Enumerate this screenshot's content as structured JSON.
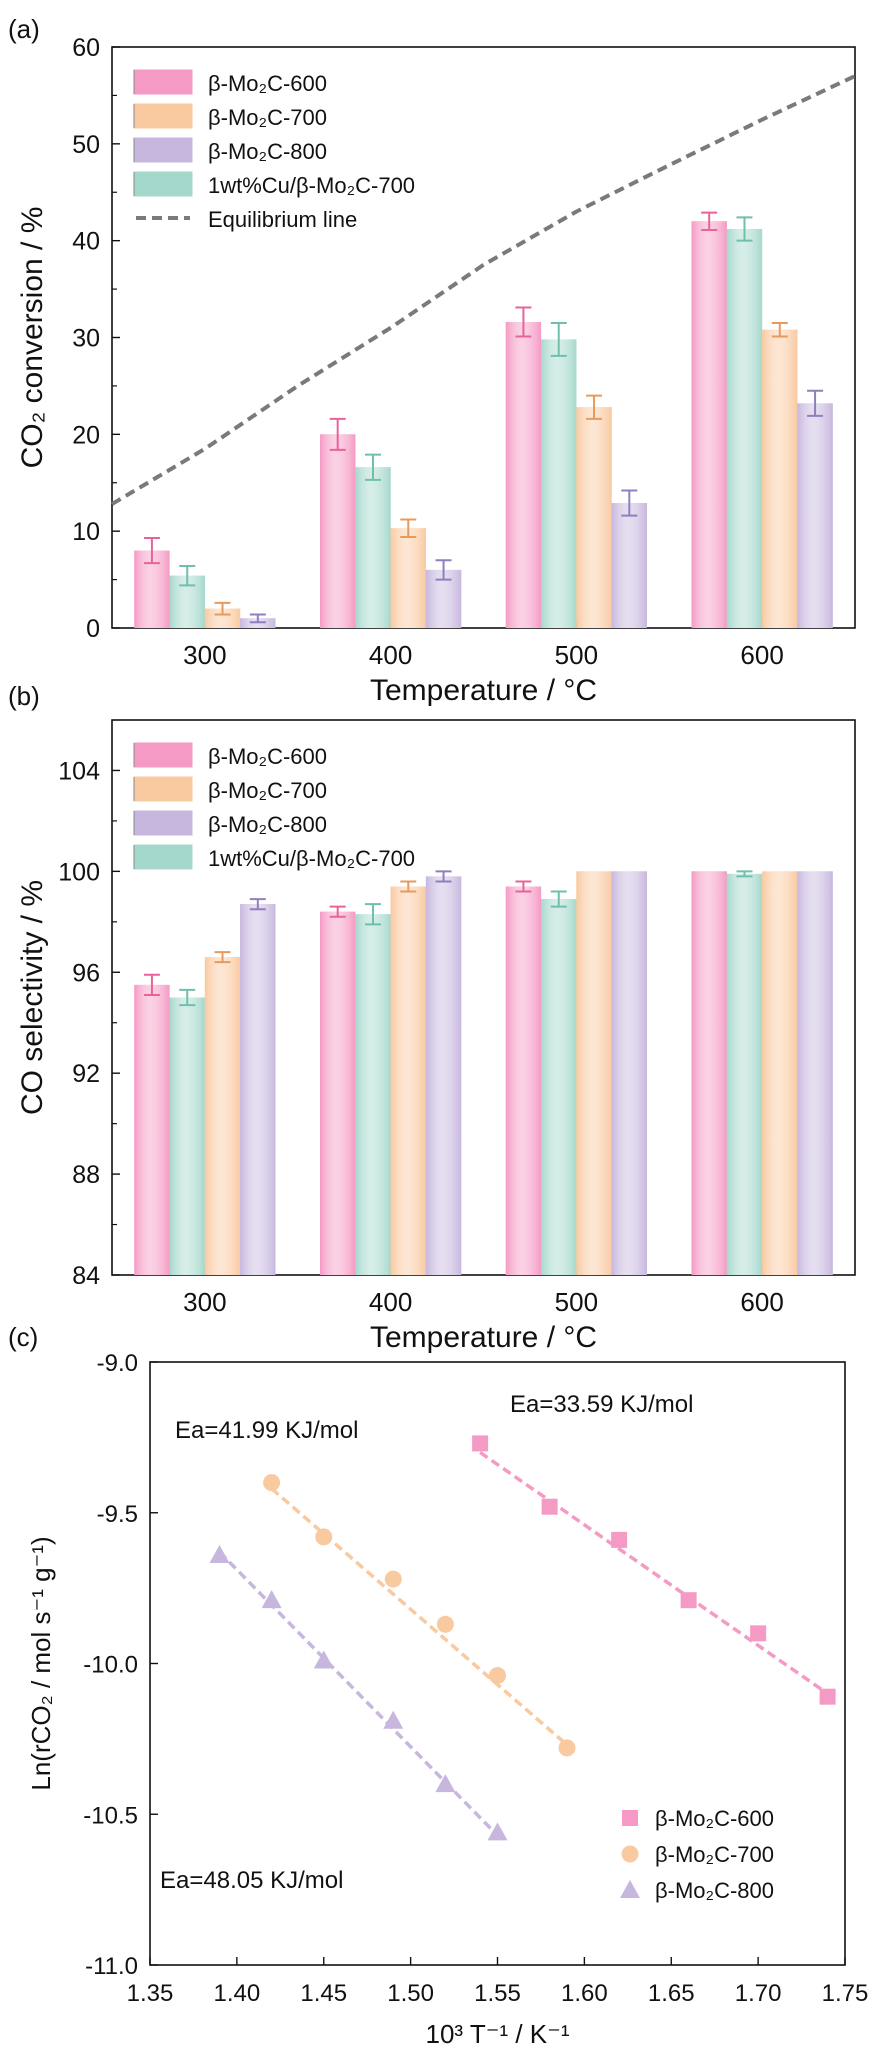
{
  "colors": {
    "s600": "#f59ac4",
    "s700": "#f9c9a0",
    "s800": "#c7b7de",
    "cu700": "#a5d8cc",
    "equilibrium": "#7a7a7a",
    "err600": "#e8639b",
    "err700": "#e89a5c",
    "err800": "#8f7fbf",
    "errcu": "#6fbfae"
  },
  "chart_data": [
    {
      "type": "bar",
      "panel_label": "(a)",
      "xlabel": "Temperature / °C",
      "ylabel": "CO₂ conversion / %",
      "ylim": [
        0,
        60
      ],
      "yticks": [
        "0",
        "10",
        "20",
        "30",
        "40",
        "50",
        "60"
      ],
      "categories": [
        "300",
        "400",
        "500",
        "600"
      ],
      "series": [
        {
          "name": "β-Mo₂C-600",
          "key": "s600",
          "values": [
            8.0,
            20.0,
            31.6,
            42.0
          ],
          "errors": [
            1.3,
            1.6,
            1.5,
            0.9
          ]
        },
        {
          "name": "1wt%Cu/β-Mo₂C-700",
          "key": "cu700",
          "values": [
            5.4,
            16.6,
            29.8,
            41.2
          ],
          "errors": [
            1.0,
            1.3,
            1.7,
            1.2
          ]
        },
        {
          "name": "β-Mo₂C-700",
          "key": "s700",
          "values": [
            2.0,
            10.3,
            22.8,
            30.8
          ],
          "errors": [
            0.6,
            0.9,
            1.2,
            0.7
          ]
        },
        {
          "name": "β-Mo₂C-800",
          "key": "s800",
          "values": [
            1.0,
            6.0,
            12.9,
            23.2
          ],
          "errors": [
            0.4,
            1.0,
            1.3,
            1.3
          ]
        }
      ],
      "legend": [
        {
          "label": "β-Mo₂C-600",
          "key": "s600",
          "kind": "box"
        },
        {
          "label": "β-Mo₂C-700",
          "key": "s700",
          "kind": "box"
        },
        {
          "label": "β-Mo₂C-800",
          "key": "s800",
          "kind": "box"
        },
        {
          "label": "1wt%Cu/β-Mo₂C-700",
          "key": "cu700",
          "kind": "box"
        },
        {
          "label": "Equilibrium line",
          "key": "equilibrium",
          "kind": "dash"
        }
      ],
      "equilibrium_line": {
        "name": "Equilibrium line",
        "x": [
          0,
          0.5,
          1,
          1.5,
          2,
          2.5,
          3,
          3.5,
          4
        ],
        "y": [
          12.8,
          18.5,
          25.0,
          31.0,
          37.5,
          43.0,
          47.8,
          52.5,
          57.0
        ]
      },
      "legend_position": "top-left"
    },
    {
      "type": "bar",
      "panel_label": "(b)",
      "xlabel": "Temperature / °C",
      "ylabel": "CO selectivity / %",
      "ylim": [
        84,
        106
      ],
      "yticks": [
        "84",
        "88",
        "92",
        "96",
        "100",
        "104"
      ],
      "categories": [
        "300",
        "400",
        "500",
        "600"
      ],
      "series": [
        {
          "name": "β-Mo₂C-600",
          "key": "s600",
          "values": [
            95.5,
            98.4,
            99.4,
            100.0
          ],
          "errors": [
            0.4,
            0.2,
            0.2,
            0
          ]
        },
        {
          "name": "1wt%Cu/β-Mo₂C-700",
          "key": "cu700",
          "values": [
            95.0,
            98.3,
            98.9,
            99.9
          ],
          "errors": [
            0.3,
            0.4,
            0.3,
            0.1
          ]
        },
        {
          "name": "β-Mo₂C-700",
          "key": "s700",
          "values": [
            96.6,
            99.4,
            100.0,
            100.0
          ],
          "errors": [
            0.2,
            0.2,
            0,
            0
          ]
        },
        {
          "name": "β-Mo₂C-800",
          "key": "s800",
          "values": [
            98.7,
            99.8,
            100.0,
            100.0
          ],
          "errors": [
            0.2,
            0.2,
            0,
            0
          ]
        }
      ],
      "legend": [
        {
          "label": "β-Mo₂C-600",
          "key": "s600",
          "kind": "box"
        },
        {
          "label": "β-Mo₂C-700",
          "key": "s700",
          "kind": "box"
        },
        {
          "label": "β-Mo₂C-800",
          "key": "s800",
          "kind": "box"
        },
        {
          "label": "1wt%Cu/β-Mo₂C-700",
          "key": "cu700",
          "kind": "box"
        }
      ],
      "legend_position": "top-left"
    },
    {
      "type": "scatter",
      "panel_label": "(c)",
      "xlabel": "10³ T⁻¹ / K⁻¹",
      "ylabel": "Ln(rCO₂ / mol s⁻¹ g⁻¹)",
      "xlim": [
        1.35,
        1.75
      ],
      "ylim": [
        -11.0,
        -9.0
      ],
      "xticks": [
        "1.35",
        "1.40",
        "1.45",
        "1.50",
        "1.55",
        "1.60",
        "1.65",
        "1.70",
        "1.75"
      ],
      "yticks": [
        "-11.0",
        "-10.5",
        "-10.0",
        "-9.5",
        "-9.0"
      ],
      "series": [
        {
          "name": "β-Mo₂C-600",
          "key": "s600",
          "marker": "square",
          "x": [
            1.54,
            1.58,
            1.62,
            1.66,
            1.7,
            1.74
          ],
          "y": [
            -9.27,
            -9.48,
            -9.59,
            -9.79,
            -9.9,
            -10.11
          ],
          "fit": {
            "x": [
              1.54,
              1.74
            ],
            "y": [
              -9.3,
              -10.1
            ]
          }
        },
        {
          "name": "β-Mo₂C-700",
          "key": "s700",
          "marker": "circle",
          "x": [
            1.42,
            1.45,
            1.49,
            1.52,
            1.55,
            1.59
          ],
          "y": [
            -9.4,
            -9.58,
            -9.72,
            -9.87,
            -10.04,
            -10.28
          ],
          "fit": {
            "x": [
              1.42,
              1.59
            ],
            "y": [
              -9.42,
              -10.27
            ]
          }
        },
        {
          "name": "β-Mo₂C-800",
          "key": "s800",
          "marker": "triangle",
          "x": [
            1.39,
            1.42,
            1.45,
            1.49,
            1.52,
            1.55
          ],
          "y": [
            -9.64,
            -9.79,
            -9.99,
            -10.19,
            -10.4,
            -10.56
          ],
          "fit": {
            "x": [
              1.39,
              1.55
            ],
            "y": [
              -9.63,
              -10.57
            ]
          }
        }
      ],
      "annotations": [
        "Ea=33.59 KJ/mol",
        "Ea=41.99 KJ/mol",
        "Ea=48.05 KJ/mol"
      ],
      "legend": [
        {
          "label": "β-Mo₂C-600",
          "key": "s600",
          "marker": "square"
        },
        {
          "label": "β-Mo₂C-700",
          "key": "s700",
          "marker": "circle"
        },
        {
          "label": "β-Mo₂C-800",
          "key": "s800",
          "marker": "triangle"
        }
      ],
      "legend_position": "bottom-right"
    }
  ]
}
